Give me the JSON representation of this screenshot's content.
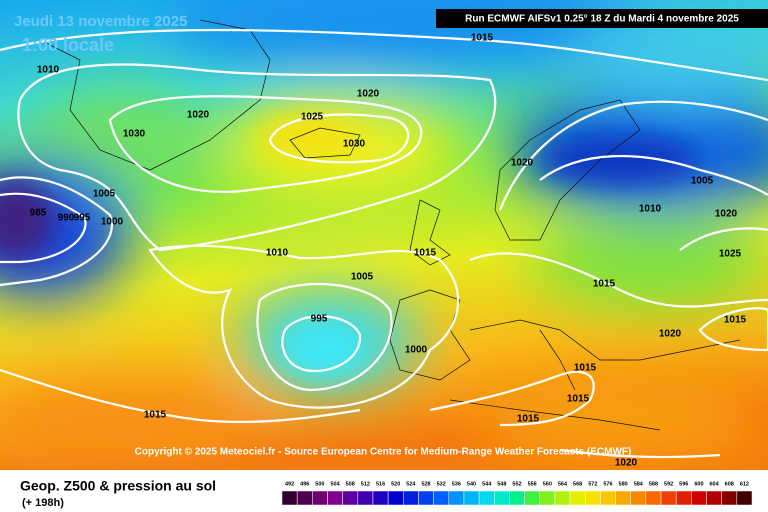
{
  "header": {
    "date": "Jeudi 13 novembre 2025",
    "time": "1:00 locale",
    "run": "Run ECMWF AIFSv1 0.25° 18 Z du Mardi 4 novembre 2025"
  },
  "isobar_labels": [
    "1015",
    "1010",
    "1020",
    "1020",
    "1025",
    "1030",
    "1030",
    "1020",
    "1005",
    "1005",
    "1010",
    "1020",
    "985",
    "990",
    "995",
    "1000",
    "1010",
    "1015",
    "1025",
    "1005",
    "1015",
    "995",
    "1015",
    "1020",
    "1000",
    "1015",
    "1015",
    "1015",
    "1015",
    "1020"
  ],
  "copyright": "Copyright © 2025 Meteociel.fr - Source European Centre for Medium-Range Weather Forecasts (ECMWF)",
  "legend": {
    "title": "Geop. Z500 & pression au sol",
    "lead": "(+ 198h)",
    "scale": [
      "492",
      "496",
      "500",
      "504",
      "508",
      "512",
      "516",
      "520",
      "524",
      "528",
      "532",
      "536",
      "540",
      "544",
      "548",
      "552",
      "556",
      "560",
      "564",
      "568",
      "572",
      "576",
      "580",
      "584",
      "588",
      "592",
      "596",
      "600",
      "604",
      "608",
      "612"
    ]
  }
}
